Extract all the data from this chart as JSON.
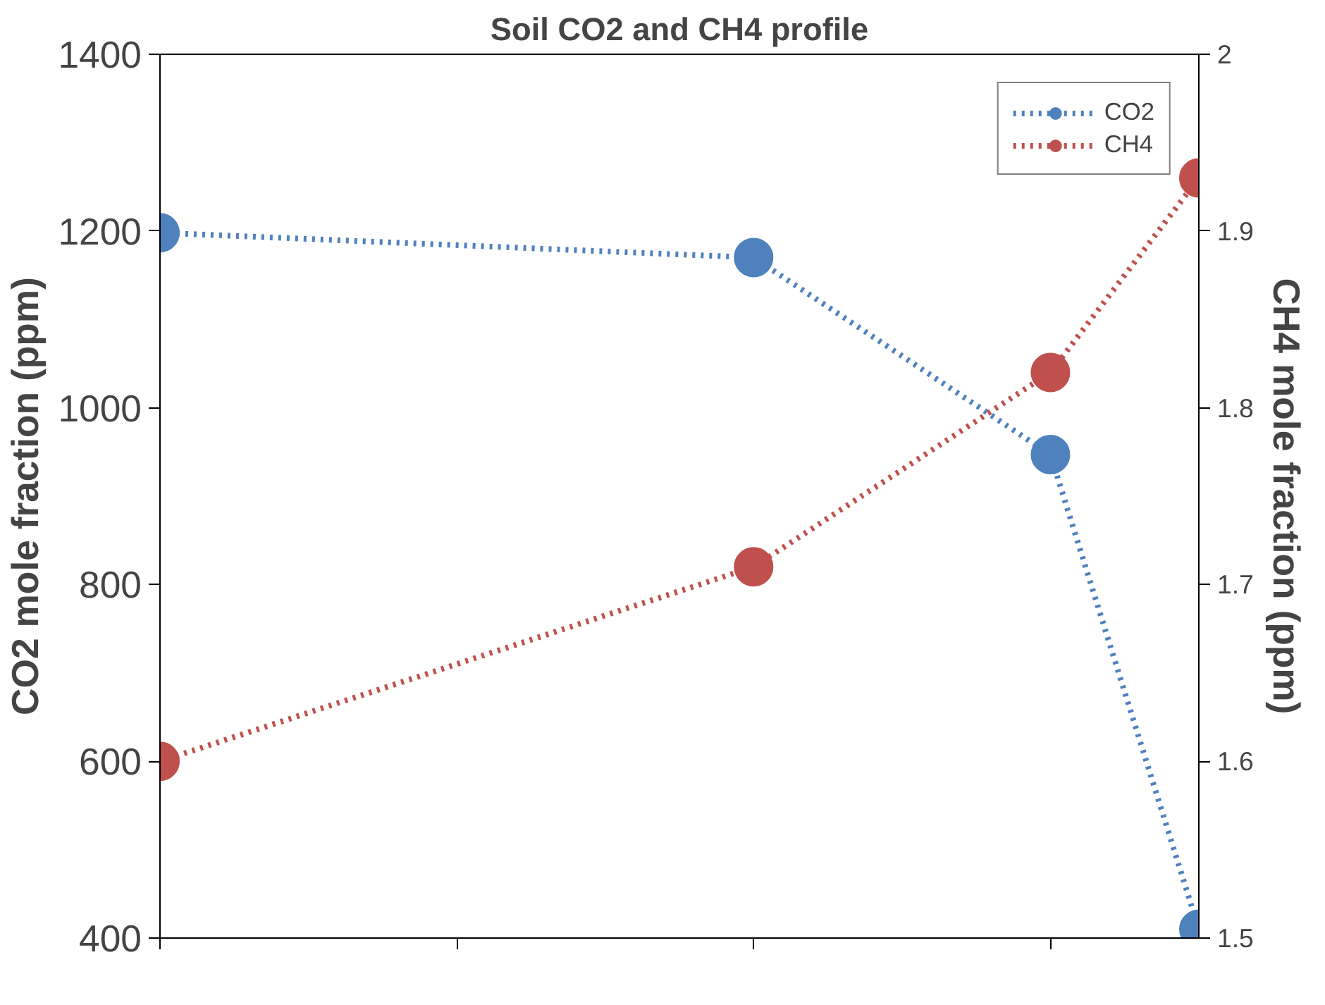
{
  "chart_data": {
    "type": "line",
    "title": "Soil CO2 and CH4 profile",
    "ylabel": "CO2 mole fraction (ppm)",
    "y2label": "CH4 mole fraction (ppm)",
    "categories": [
      null,
      null,
      null,
      null,
      null,
      null,
      null,
      null
    ],
    "ylim": [
      400,
      1400
    ],
    "yticks": [
      400,
      600,
      800,
      1000,
      1200,
      1400
    ],
    "y2lim": [
      1.5,
      2
    ],
    "y2ticks": [
      1.5,
      1.6,
      1.7,
      1.8,
      1.9,
      2
    ],
    "series": [
      {
        "name": "CO2",
        "color": "#4f81bd",
        "values": [
          1198,
          null,
          null,
          null,
          1170,
          null,
          947,
          410
        ]
      },
      {
        "name": "CH4",
        "color": "#c0504d",
        "values": [
          1.6,
          null,
          null,
          null,
          1.71,
          null,
          1.82,
          1.93
        ],
        "axis": "y2"
      }
    ],
    "marker": "circle",
    "line_style": "dotted",
    "grid": false,
    "legend": "top right",
    "tick_labels": "y"
  }
}
